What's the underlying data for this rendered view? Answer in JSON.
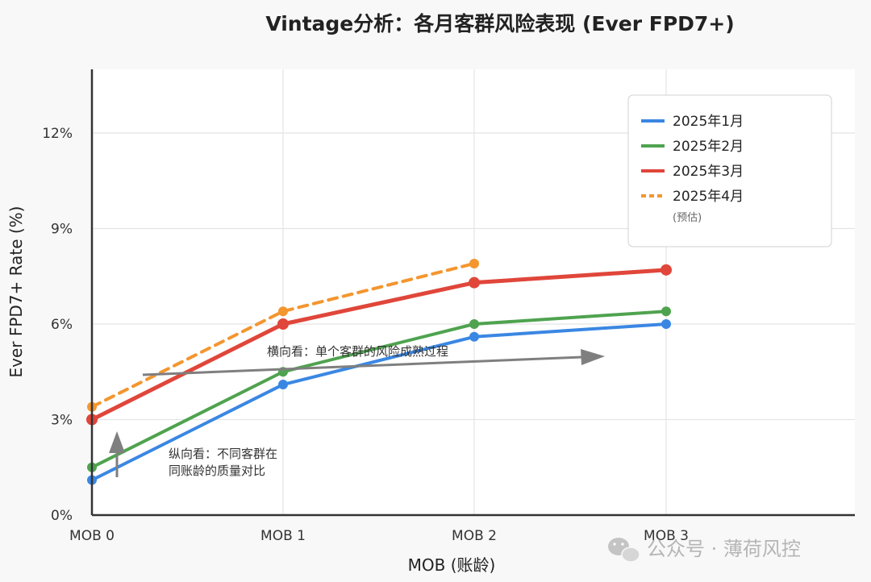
{
  "chart_data": {
    "type": "line",
    "title": "Vintage分析：各月客群风险表现 (Ever FPD7+)",
    "xlabel": "MOB (账龄)",
    "ylabel": "Ever FPD7+ Rate (%)",
    "categories": [
      "MOB 0",
      "MOB 1",
      "MOB 2",
      "MOB 3"
    ],
    "ylim": [
      0,
      14
    ],
    "yticks": [
      0,
      3,
      6,
      9,
      12
    ],
    "ytick_labels": [
      "0%",
      "3%",
      "6%",
      "9%",
      "12%"
    ],
    "grid": true,
    "legend_position": "top-right",
    "series": [
      {
        "name": "2025年1月",
        "color": "#3a87e3",
        "dashed": false,
        "values": [
          1.1,
          4.1,
          5.6,
          6.0
        ]
      },
      {
        "name": "2025年2月",
        "color": "#4fa34f",
        "dashed": false,
        "values": [
          1.5,
          4.5,
          6.0,
          6.4
        ]
      },
      {
        "name": "2025年3月",
        "color": "#e0463a",
        "dashed": false,
        "values": [
          3.0,
          6.0,
          7.3,
          7.7
        ]
      },
      {
        "name": "2025年4月",
        "note": "(预估)",
        "color": "#f3962f",
        "dashed": true,
        "values": [
          3.4,
          6.4,
          7.9,
          null
        ]
      }
    ],
    "annotations": [
      {
        "text": "横向看：单个客群的风险成熟过程"
      },
      {
        "lines": [
          "纵向看：不同客群在",
          "同账龄的质量对比"
        ]
      }
    ]
  },
  "watermark": {
    "text": "公众号 · 薄荷风控",
    "icon": "wechat-icon"
  }
}
